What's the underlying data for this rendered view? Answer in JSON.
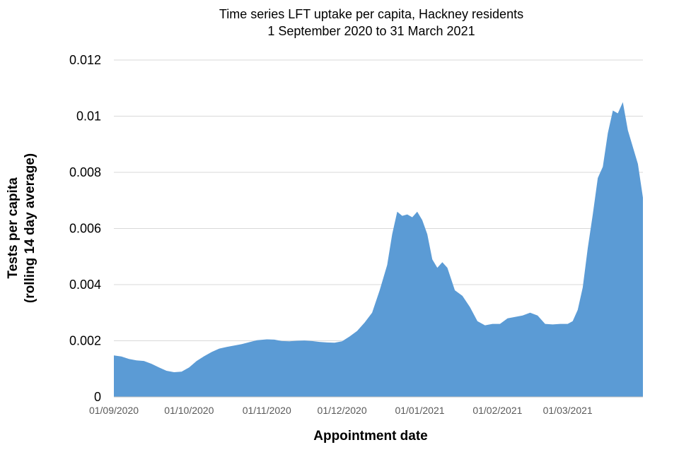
{
  "chart_data": {
    "type": "area",
    "title_lines": [
      "Time series LFT uptake per capita, Hackney residents",
      "1 September 2020 to 31 March 2021"
    ],
    "xlabel": "Appointment date",
    "ylabel_lines": [
      "Tests per capita",
      "(rolling 14 day average)"
    ],
    "ylim": [
      0,
      0.012
    ],
    "y_ticks": [
      "0",
      "0.002",
      "0.004",
      "0.006",
      "0.008",
      "0.01",
      "0.012"
    ],
    "x_ticks": [
      {
        "date": "2020-09-01",
        "label": "01/09/2020"
      },
      {
        "date": "2020-10-01",
        "label": "01/10/2020"
      },
      {
        "date": "2020-11-01",
        "label": "01/11/2020"
      },
      {
        "date": "2020-12-01",
        "label": "01/12/2020"
      },
      {
        "date": "2021-01-01",
        "label": "01/01/2021"
      },
      {
        "date": "2021-02-01",
        "label": "01/02/2021"
      },
      {
        "date": "2021-03-01",
        "label": "01/03/2021"
      }
    ],
    "x_range": [
      "2020-09-01",
      "2021-03-31"
    ],
    "grid": true,
    "legend": "none",
    "fill_color": "#5b9bd5",
    "x": [
      "2020-09-01",
      "2020-09-04",
      "2020-09-07",
      "2020-09-10",
      "2020-09-13",
      "2020-09-16",
      "2020-09-19",
      "2020-09-22",
      "2020-09-25",
      "2020-09-28",
      "2020-10-01",
      "2020-10-04",
      "2020-10-07",
      "2020-10-10",
      "2020-10-13",
      "2020-10-16",
      "2020-10-19",
      "2020-10-22",
      "2020-10-25",
      "2020-10-28",
      "2020-11-01",
      "2020-11-04",
      "2020-11-07",
      "2020-11-10",
      "2020-11-13",
      "2020-11-16",
      "2020-11-19",
      "2020-11-22",
      "2020-11-25",
      "2020-11-28",
      "2020-12-01",
      "2020-12-04",
      "2020-12-07",
      "2020-12-10",
      "2020-12-13",
      "2020-12-16",
      "2020-12-19",
      "2020-12-21",
      "2020-12-23",
      "2020-12-25",
      "2020-12-27",
      "2020-12-29",
      "2020-12-31",
      "2021-01-02",
      "2021-01-04",
      "2021-01-06",
      "2021-01-08",
      "2021-01-10",
      "2021-01-12",
      "2021-01-15",
      "2021-01-18",
      "2021-01-21",
      "2021-01-24",
      "2021-01-27",
      "2021-01-30",
      "2021-02-02",
      "2021-02-05",
      "2021-02-08",
      "2021-02-11",
      "2021-02-14",
      "2021-02-17",
      "2021-02-20",
      "2021-02-23",
      "2021-02-26",
      "2021-03-01",
      "2021-03-03",
      "2021-03-05",
      "2021-03-07",
      "2021-03-09",
      "2021-03-11",
      "2021-03-13",
      "2021-03-15",
      "2021-03-17",
      "2021-03-19",
      "2021-03-21",
      "2021-03-23",
      "2021-03-25",
      "2021-03-27",
      "2021-03-29",
      "2021-03-31"
    ],
    "values": [
      0.00148,
      0.00144,
      0.00135,
      0.0013,
      0.00128,
      0.00118,
      0.00105,
      0.00093,
      0.00088,
      0.0009,
      0.00105,
      0.00128,
      0.00145,
      0.0016,
      0.00172,
      0.00178,
      0.00183,
      0.00188,
      0.00195,
      0.00202,
      0.00205,
      0.00204,
      0.00199,
      0.00198,
      0.002,
      0.00201,
      0.00199,
      0.00196,
      0.00194,
      0.00193,
      0.00198,
      0.00215,
      0.00235,
      0.00265,
      0.003,
      0.0038,
      0.0047,
      0.0058,
      0.0066,
      0.00645,
      0.0065,
      0.0064,
      0.0066,
      0.0063,
      0.0058,
      0.0049,
      0.0046,
      0.0048,
      0.0046,
      0.0038,
      0.0036,
      0.0032,
      0.0027,
      0.00255,
      0.0026,
      0.0026,
      0.0028,
      0.00285,
      0.0029,
      0.003,
      0.0029,
      0.0026,
      0.00258,
      0.0026,
      0.0026,
      0.0027,
      0.0031,
      0.0039,
      0.0053,
      0.0065,
      0.0078,
      0.0082,
      0.0094,
      0.0102,
      0.0101,
      0.0105,
      0.0095,
      0.0089,
      0.0083,
      0.0071
    ]
  }
}
